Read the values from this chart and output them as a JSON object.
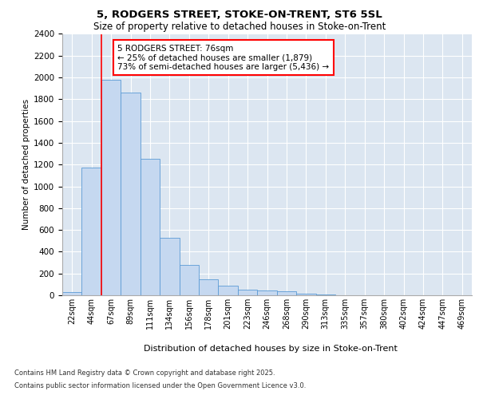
{
  "title1": "5, RODGERS STREET, STOKE-ON-TRENT, ST6 5SL",
  "title2": "Size of property relative to detached houses in Stoke-on-Trent",
  "xlabel": "Distribution of detached houses by size in Stoke-on-Trent",
  "ylabel": "Number of detached properties",
  "categories": [
    "22sqm",
    "44sqm",
    "67sqm",
    "89sqm",
    "111sqm",
    "134sqm",
    "156sqm",
    "178sqm",
    "201sqm",
    "223sqm",
    "246sqm",
    "268sqm",
    "290sqm",
    "313sqm",
    "335sqm",
    "357sqm",
    "380sqm",
    "402sqm",
    "424sqm",
    "447sqm",
    "469sqm"
  ],
  "values": [
    30,
    1170,
    1980,
    1860,
    1250,
    525,
    275,
    150,
    90,
    50,
    45,
    35,
    15,
    5,
    3,
    2,
    1,
    1,
    1,
    1,
    1
  ],
  "bar_color": "#c5d8f0",
  "bar_edge_color": "#5b9bd5",
  "background_color": "#dce6f1",
  "grid_color": "#ffffff",
  "red_line_index": 1.5,
  "annotation_text": "5 RODGERS STREET: 76sqm\n← 25% of detached houses are smaller (1,879)\n73% of semi-detached houses are larger (5,436) →",
  "footer1": "Contains HM Land Registry data © Crown copyright and database right 2025.",
  "footer2": "Contains public sector information licensed under the Open Government Licence v3.0.",
  "ylim": [
    0,
    2400
  ],
  "yticks": [
    0,
    200,
    400,
    600,
    800,
    1000,
    1200,
    1400,
    1600,
    1800,
    2000,
    2200,
    2400
  ]
}
